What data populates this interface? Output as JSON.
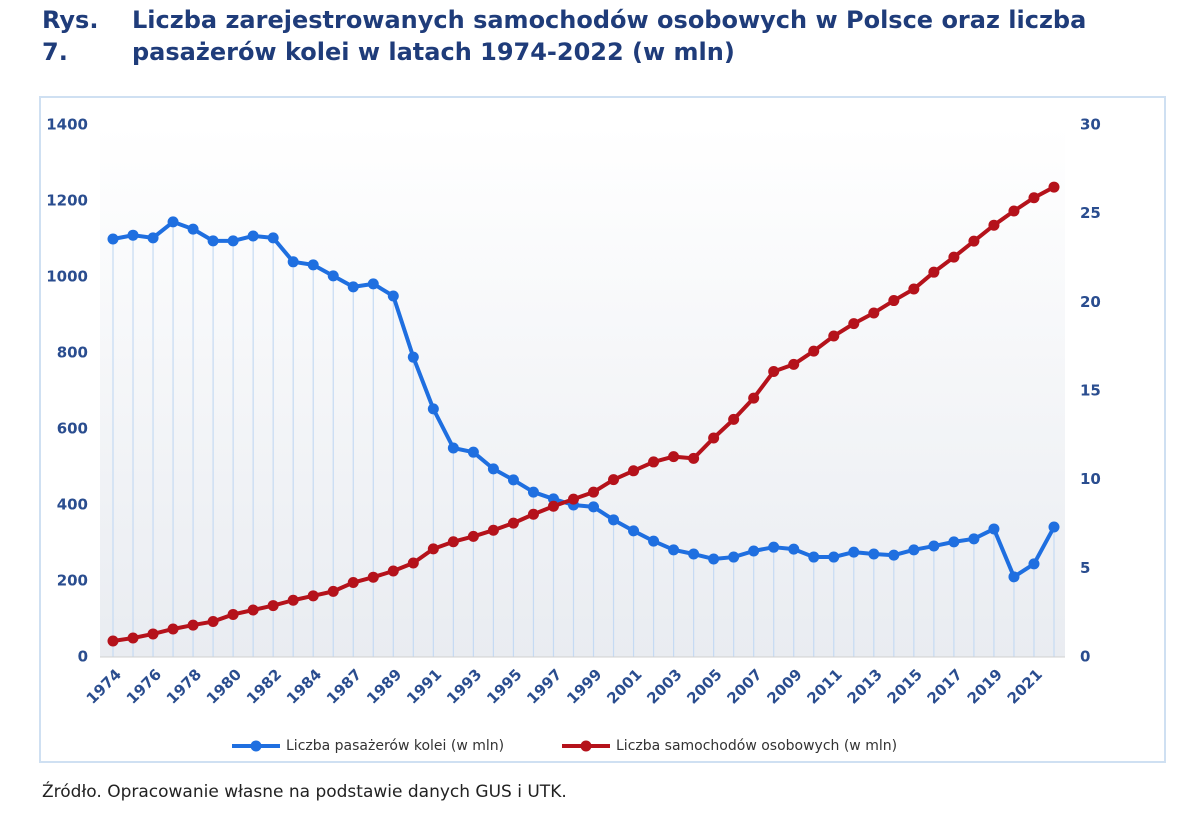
{
  "chart_data": {
    "type": "line",
    "figure_label": "Rys. 7.",
    "title": "Liczba zarejestrowanych samochodów osobowych w Polsce oraz liczba pasażerów kolei w latach 1974-2022 (w mln)",
    "source": "Źródło. Opracowanie własne na podstawie danych GUS i UTK.",
    "categories": [
      "1974",
      null,
      "1976",
      null,
      "1978",
      null,
      "1980",
      null,
      "1982",
      null,
      "1984",
      null,
      "1987",
      null,
      "1989",
      null,
      "1991",
      null,
      "1993",
      null,
      "1995",
      null,
      "1997",
      null,
      "1999",
      null,
      "2001",
      null,
      "2003",
      null,
      "2005",
      null,
      "2007",
      null,
      "2009",
      null,
      "2011",
      null,
      "2013",
      null,
      "2015",
      null,
      "2017",
      null,
      "2019",
      null,
      "2021",
      null
    ],
    "series": [
      {
        "name": "Liczba pasażerów kolei (w mln)",
        "color": "#1f6fe0",
        "axis": "y",
        "values": [
          1100,
          1110,
          1103,
          1145,
          1126,
          1095,
          1095,
          1108,
          1103,
          1040,
          1032,
          1003,
          974,
          982,
          950,
          789,
          653,
          550,
          539,
          495,
          466,
          434,
          416,
          400,
          395,
          361,
          332,
          305,
          282,
          271,
          258,
          263,
          279,
          289,
          284,
          263,
          263,
          276,
          271,
          268,
          282,
          292,
          303,
          311,
          337,
          211,
          245,
          342
        ]
      },
      {
        "name": "Liczba samochodów osobowych (w mln)",
        "color": "#b5121b",
        "axis": "y2",
        "values": [
          0.9,
          1.07,
          1.3,
          1.58,
          1.8,
          2.0,
          2.4,
          2.65,
          2.9,
          3.2,
          3.45,
          3.7,
          4.2,
          4.5,
          4.85,
          5.3,
          6.1,
          6.5,
          6.8,
          7.15,
          7.55,
          8.05,
          8.5,
          8.9,
          9.3,
          10.0,
          10.5,
          11.0,
          11.3,
          11.2,
          12.35,
          13.4,
          14.6,
          16.1,
          16.5,
          17.25,
          18.1,
          18.8,
          19.4,
          20.1,
          20.75,
          21.7,
          22.55,
          23.45,
          24.35,
          25.15,
          25.9,
          26.5
        ]
      }
    ],
    "ylim": [
      0,
      1400
    ],
    "yticks": [
      0,
      200,
      400,
      600,
      800,
      1000,
      1200,
      1400
    ],
    "y2lim": [
      0,
      30
    ],
    "y2ticks": [
      0,
      5,
      10,
      15,
      20,
      25,
      30
    ],
    "drop_lines": true,
    "legend": "bottom"
  }
}
